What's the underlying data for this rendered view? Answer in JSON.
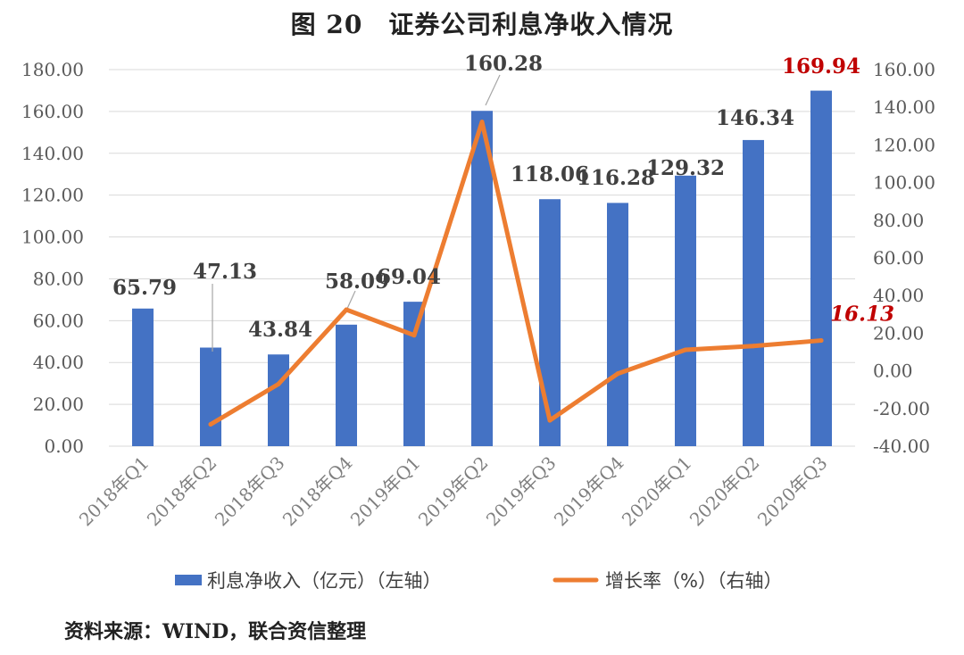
{
  "figure_title": "图 20　证券公司利息净收入情况",
  "source": "资料来源：WIND，联合资信整理",
  "colors": {
    "bar": "#4472C4",
    "line": "#ED7D31",
    "highlight": "#C00000",
    "grid": "#D9D9D9",
    "axis_text": "#595959"
  },
  "chart_data": {
    "type": "bar",
    "categories": [
      "2018年Q1",
      "2018年Q2",
      "2018年Q3",
      "2018年Q4",
      "2019年Q1",
      "2019年Q2",
      "2019年Q3",
      "2019年Q4",
      "2020年Q1",
      "2020年Q2",
      "2020年Q3"
    ],
    "series": [
      {
        "name": "利息净收入（亿元）（左轴）",
        "type": "bar",
        "axis": "left",
        "values": [
          65.79,
          47.13,
          43.84,
          58.09,
          69.04,
          160.28,
          118.06,
          116.28,
          129.32,
          146.34,
          169.94
        ],
        "labels": [
          "65.79",
          "47.13",
          "43.84",
          "58.09",
          "69.04",
          "160.28",
          "118.06",
          "116.28",
          "129.32",
          "146.34",
          "169.94"
        ]
      },
      {
        "name": "增长率（%）（右轴）",
        "type": "line",
        "axis": "right",
        "values": [
          null,
          -28.4,
          -7.0,
          32.5,
          18.9,
          132.2,
          -26.3,
          -1.5,
          11.2,
          13.2,
          16.13
        ],
        "labels": [
          "16.13"
        ]
      }
    ],
    "y_left": {
      "min": 0,
      "max": 180,
      "step": 20,
      "ticks": [
        "0.00",
        "20.00",
        "40.00",
        "60.00",
        "80.00",
        "100.00",
        "120.00",
        "140.00",
        "160.00",
        "180.00"
      ]
    },
    "y_right": {
      "min": -40,
      "max": 160,
      "step": 20,
      "ticks": [
        "-40.00",
        "-20.00",
        "0.00",
        "20.00",
        "40.00",
        "60.00",
        "80.00",
        "100.00",
        "120.00",
        "140.00",
        "160.00"
      ]
    },
    "grid": true,
    "legend": "bottom"
  }
}
